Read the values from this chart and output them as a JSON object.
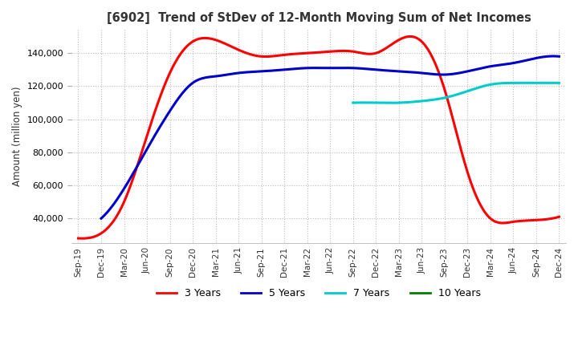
{
  "title": "[6902]  Trend of StDev of 12-Month Moving Sum of Net Incomes",
  "ylabel": "Amount (million yen)",
  "ylim": [
    25000,
    155000
  ],
  "yticks": [
    40000,
    60000,
    80000,
    100000,
    120000,
    140000
  ],
  "background_color": "#ffffff",
  "grid_color": "#bbbbbb",
  "legend_labels": [
    "3 Years",
    "5 Years",
    "7 Years",
    "10 Years"
  ],
  "legend_colors": [
    "#ff0000",
    "#0000cd",
    "#00cccc",
    "#008000"
  ],
  "dates": [
    "Sep-19",
    "Dec-19",
    "Mar-20",
    "Jun-20",
    "Sep-20",
    "Dec-20",
    "Mar-21",
    "Jun-21",
    "Sep-21",
    "Dec-21",
    "Mar-22",
    "Jun-22",
    "Sep-22",
    "Dec-22",
    "Mar-23",
    "Jun-23",
    "Sep-23",
    "Dec-23",
    "Mar-24",
    "Jun-24",
    "Sep-24",
    "Dec-24"
  ],
  "series_3y": [
    28000,
    31000,
    50000,
    90000,
    128000,
    147000,
    148000,
    142000,
    138000,
    139000,
    140000,
    141000,
    141000,
    140000,
    148000,
    147000,
    118000,
    68000,
    40000,
    38000,
    39000,
    41000
  ],
  "series_5y": [
    null,
    40000,
    58000,
    82000,
    105000,
    122000,
    126000,
    128000,
    129000,
    130000,
    131000,
    131000,
    131000,
    130000,
    129000,
    128000,
    127000,
    129000,
    132000,
    134000,
    137000,
    138000
  ],
  "series_7y": [
    null,
    null,
    null,
    null,
    null,
    null,
    null,
    null,
    null,
    null,
    null,
    null,
    110000,
    110000,
    110000,
    111000,
    113000,
    117000,
    121000,
    122000,
    122000,
    122000
  ],
  "series_10y": [
    null,
    null,
    null,
    null,
    null,
    null,
    null,
    null,
    null,
    null,
    null,
    null,
    null,
    null,
    null,
    null,
    null,
    null,
    null,
    null,
    null,
    null
  ]
}
